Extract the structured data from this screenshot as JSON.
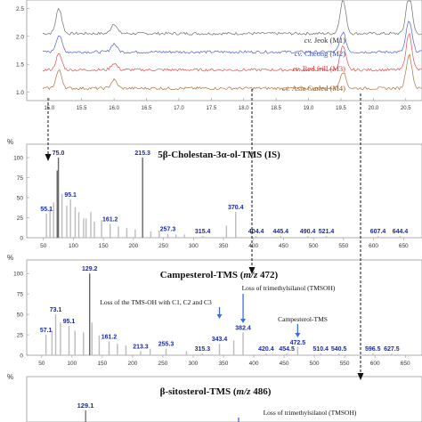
{
  "chart_data": [
    {
      "type": "line",
      "panel": "chromatogram",
      "x_ticks": [
        "15.0",
        "15.5",
        "16.0",
        "16.5",
        "17.0",
        "17.5",
        "18.0",
        "18.5",
        "19.0",
        "19.5",
        "20.0",
        "20.5"
      ],
      "y_ticks": [
        "1.0",
        "1.5",
        "2.0",
        "2.5"
      ],
      "xlim": [
        14.9,
        20.75
      ],
      "ylim": [
        0.85,
        2.65
      ],
      "series": [
        {
          "name": "cv. Jeok (M1)",
          "color": "#555555",
          "baseline": 2.05,
          "label_text": "Jeok (M1)"
        },
        {
          "name": "cv. Cheong (M2)",
          "color": "#3344cc",
          "baseline": 1.72,
          "label_text": "Cheong (M2)"
        },
        {
          "name": "cv. Red frill (M3)",
          "color": "#e03030",
          "baseline": 1.4,
          "label_text": "Red frill (M3)"
        },
        {
          "name": "cv. Asia Curled (M4)",
          "color": "#9a5a1a",
          "baseline": 1.07,
          "label_text": "Asia Curled (M4)"
        }
      ],
      "series_prefix": "cv.",
      "peaks": [
        {
          "rt": 15.15,
          "heights": [
            0.45,
            0.3,
            0.28,
            0.32
          ]
        },
        {
          "rt": 16.0,
          "heights": [
            0.18,
            0.15,
            0.12,
            0.15
          ]
        },
        {
          "rt": 19.53,
          "heights": [
            0.6,
            0.35,
            0.42,
            0.3
          ]
        },
        {
          "rt": 20.55,
          "heights": [
            0.7,
            0.55,
            0.65,
            0.6
          ]
        }
      ]
    },
    {
      "type": "bar",
      "panel": "ms-1",
      "title_prefix": "5β-Cholestan-3α-ol-TMS (IS)",
      "y_symbol": "%",
      "x_ticks": [
        50,
        100,
        150,
        200,
        250,
        300,
        350,
        400,
        450,
        500,
        550,
        600,
        650
      ],
      "y_ticks": [
        0,
        25,
        50,
        75,
        100
      ],
      "xlim": [
        40,
        660
      ],
      "ylim": [
        0,
        110
      ],
      "peaks": [
        [
          55.1,
          30
        ],
        [
          61,
          36
        ],
        [
          67,
          44
        ],
        [
          73,
          84
        ],
        [
          75,
          100
        ],
        [
          81,
          55
        ],
        [
          89,
          40
        ],
        [
          95.1,
          48
        ],
        [
          103,
          38
        ],
        [
          109,
          32
        ],
        [
          117,
          24
        ],
        [
          121,
          24
        ],
        [
          129,
          32
        ],
        [
          135,
          20
        ],
        [
          147,
          22
        ],
        [
          161.2,
          17
        ],
        [
          175,
          14
        ],
        [
          189,
          12
        ],
        [
          203,
          10
        ],
        [
          215.3,
          100
        ],
        [
          229,
          8
        ],
        [
          243,
          9
        ],
        [
          257.3,
          5
        ],
        [
          271,
          4
        ],
        [
          285,
          4
        ],
        [
          315.4,
          2
        ],
        [
          355,
          15
        ],
        [
          370.4,
          32
        ],
        [
          404.4,
          2
        ],
        [
          445.4,
          2
        ],
        [
          490.4,
          2
        ],
        [
          521.4,
          2
        ],
        [
          607.4,
          2
        ],
        [
          644.4,
          2
        ]
      ],
      "labels": [
        {
          "x": 55.1,
          "text": "55.1"
        },
        {
          "x": 75.0,
          "text": "75.0"
        },
        {
          "x": 95.1,
          "text": "95.1"
        },
        {
          "x": 161.2,
          "text": "161.2"
        },
        {
          "x": 215.3,
          "text": "215.3"
        },
        {
          "x": 257.3,
          "text": "257.3"
        },
        {
          "x": 315.4,
          "text": "315.4"
        },
        {
          "x": 370.4,
          "text": "370.4"
        },
        {
          "x": 404.4,
          "text": "404.4"
        },
        {
          "x": 445.4,
          "text": "445.4"
        },
        {
          "x": 490.4,
          "text": "490.4"
        },
        {
          "x": 521.4,
          "text": "521.4"
        },
        {
          "x": 607.4,
          "text": "607.4"
        },
        {
          "x": 644.4,
          "text": "644.4"
        }
      ]
    },
    {
      "type": "bar",
      "panel": "ms-2",
      "title_prefix": "Campesterol-TMS (",
      "title_mz": "m/z",
      "title_suffix": " 472)",
      "y_symbol": "%",
      "x_ticks": [
        50,
        100,
        150,
        200,
        250,
        300,
        350,
        400,
        450,
        500,
        550,
        600,
        650
      ],
      "y_ticks": [
        0,
        25,
        50,
        75,
        100
      ],
      "xlim": [
        40,
        660
      ],
      "ylim": [
        0,
        110
      ],
      "peaks": [
        [
          57.1,
          25
        ],
        [
          67,
          30
        ],
        [
          73.1,
          50
        ],
        [
          81,
          40
        ],
        [
          95.1,
          36
        ],
        [
          105,
          30
        ],
        [
          119,
          28
        ],
        [
          129.2,
          100
        ],
        [
          133,
          40
        ],
        [
          145,
          24
        ],
        [
          161.2,
          17
        ],
        [
          175,
          14
        ],
        [
          189,
          12
        ],
        [
          213.3,
          5
        ],
        [
          229,
          8
        ],
        [
          255.3,
          8
        ],
        [
          289,
          5
        ],
        [
          315.3,
          2
        ],
        [
          343.4,
          14
        ],
        [
          367,
          18
        ],
        [
          382.4,
          28
        ],
        [
          420.4,
          2
        ],
        [
          454.5,
          2
        ],
        [
          472.5,
          10
        ],
        [
          510.4,
          2
        ],
        [
          540.5,
          2
        ],
        [
          596.5,
          2
        ],
        [
          627.5,
          2
        ]
      ],
      "labels": [
        {
          "x": 57.1,
          "text": "57.1"
        },
        {
          "x": 73.1,
          "text": "73.1"
        },
        {
          "x": 95.1,
          "text": "95.1"
        },
        {
          "x": 129.2,
          "text": "129.2"
        },
        {
          "x": 161.2,
          "text": "161.2"
        },
        {
          "x": 213.3,
          "text": "213.3"
        },
        {
          "x": 255.3,
          "text": "255.3"
        },
        {
          "x": 315.3,
          "text": "315.3"
        },
        {
          "x": 343.4,
          "text": "343.4"
        },
        {
          "x": 382.4,
          "text": "382.4"
        },
        {
          "x": 420.4,
          "text": "420.4"
        },
        {
          "x": 454.5,
          "text": "454.5"
        },
        {
          "x": 472.5,
          "text": "472.5"
        },
        {
          "x": 510.4,
          "text": "510.4"
        },
        {
          "x": 540.5,
          "text": "540.5"
        },
        {
          "x": 596.5,
          "text": "596.5"
        },
        {
          "x": 627.5,
          "text": "627.5"
        }
      ],
      "annotations": [
        {
          "text": "Loss of the TMS-OH with C1, C2 and C3",
          "target": 343.4
        },
        {
          "text": "Loss of trimethylsilanol (TMSOH)",
          "target": 382.4
        },
        {
          "text": "Campesterol-TMS",
          "target": 472.5
        }
      ]
    },
    {
      "type": "bar",
      "panel": "ms-3",
      "title_prefix": "β-sitosterol-TMS (",
      "title_mz": "m/z",
      "title_suffix": " 486)",
      "y_symbol": "%",
      "labels": [
        {
          "x": 129.1,
          "text": "129.1"
        }
      ],
      "annotations": [
        {
          "text": "Loss of trimethylsilanol (TMSOH)"
        }
      ]
    }
  ]
}
